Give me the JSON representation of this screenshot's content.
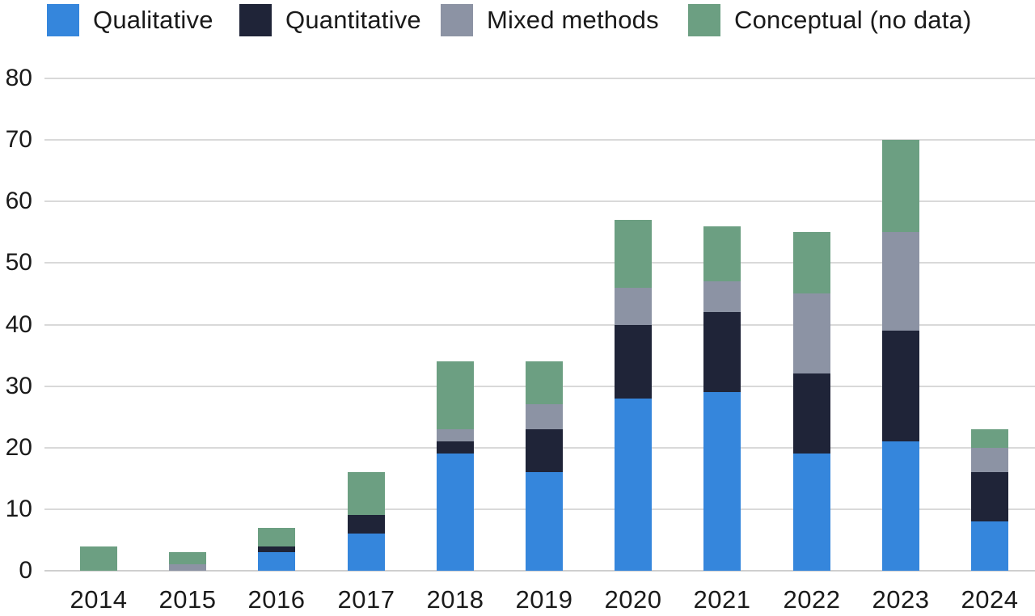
{
  "chart_data": {
    "type": "bar",
    "stacked": true,
    "title": "",
    "categories": [
      "2014",
      "2015",
      "2016",
      "2017",
      "2018",
      "2019",
      "2020",
      "2021",
      "2022",
      "2023",
      "2024"
    ],
    "series": [
      {
        "name": "Qualitative",
        "color": "#3586dc",
        "values": [
          0,
          0,
          3,
          6,
          19,
          16,
          28,
          29,
          19,
          21,
          8
        ]
      },
      {
        "name": "Quantitative",
        "color": "#1f2438",
        "values": [
          0,
          0,
          1,
          3,
          2,
          7,
          12,
          13,
          13,
          18,
          8
        ]
      },
      {
        "name": "Mixed methods",
        "color": "#8c93a4",
        "values": [
          0,
          1,
          0,
          0,
          2,
          4,
          6,
          5,
          13,
          16,
          4
        ]
      },
      {
        "name": "Conceptual (no data)",
        "color": "#6c9f82",
        "values": [
          4,
          2,
          3,
          7,
          11,
          7,
          11,
          9,
          10,
          15,
          3
        ]
      }
    ],
    "totals": [
      4,
      3,
      7,
      16,
      34,
      34,
      57,
      56,
      55,
      70,
      23
    ],
    "y_axis": {
      "min": 0,
      "max": 80,
      "step": 10,
      "ticks": [
        0,
        10,
        20,
        30,
        40,
        50,
        60,
        70,
        80
      ]
    },
    "x_axis": {
      "label": ""
    },
    "legend": {
      "position": "top"
    },
    "grid": true,
    "colors": {
      "text": "#1a1a1a",
      "gridline": "#d9d9d9",
      "background": "#ffffff"
    }
  }
}
